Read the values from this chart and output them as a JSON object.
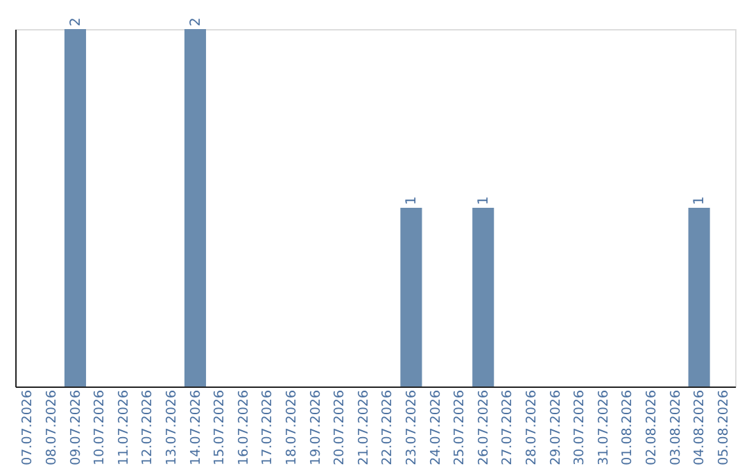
{
  "chart_data": {
    "type": "bar",
    "categories": [
      "07.07.2026",
      "08.07.2026",
      "09.07.2026",
      "10.07.2026",
      "11.07.2026",
      "12.07.2026",
      "13.07.2026",
      "14.07.2026",
      "15.07.2026",
      "16.07.2026",
      "17.07.2026",
      "18.07.2026",
      "19.07.2026",
      "20.07.2026",
      "21.07.2026",
      "22.07.2026",
      "23.07.2026",
      "24.07.2026",
      "25.07.2026",
      "26.07.2026",
      "27.07.2026",
      "28.07.2026",
      "29.07.2026",
      "30.07.2026",
      "31.07.2026",
      "01.08.2026",
      "02.08.2026",
      "03.08.2026",
      "04.08.2026",
      "05.08.2026"
    ],
    "values": [
      0,
      0,
      2,
      0,
      0,
      0,
      0,
      2,
      0,
      0,
      0,
      0,
      0,
      0,
      0,
      0,
      1,
      0,
      0,
      1,
      0,
      0,
      0,
      0,
      0,
      0,
      0,
      0,
      1,
      0
    ],
    "value_labels": [
      null,
      null,
      "2",
      null,
      null,
      null,
      null,
      "2",
      null,
      null,
      null,
      null,
      null,
      null,
      null,
      null,
      "1",
      null,
      null,
      "1",
      null,
      null,
      null,
      null,
      null,
      null,
      null,
      null,
      "1",
      null
    ],
    "color": "#6a8caf",
    "ylim": [
      0,
      2
    ],
    "tick_labels": "x",
    "grid": false
  }
}
